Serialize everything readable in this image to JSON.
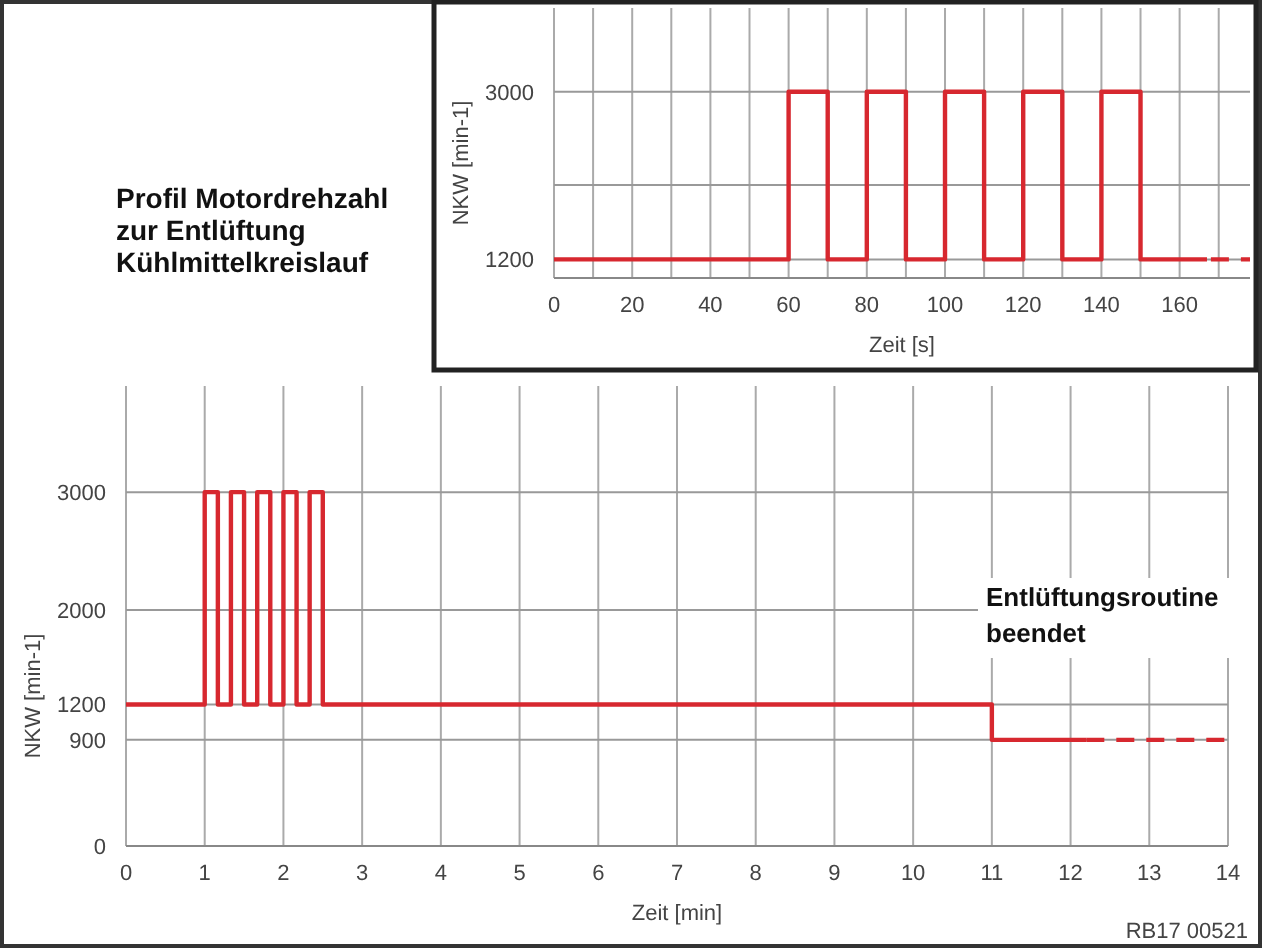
{
  "chart_data": [
    {
      "type": "line",
      "title": "Profil Motordrehzahl zur Entlüftung Kühlmittelkreislauf",
      "xlabel": "Zeit [min]",
      "ylabel": "NKW [min-1]",
      "xlim": [
        0,
        14
      ],
      "xticks": [
        0,
        1,
        2,
        3,
        4,
        5,
        6,
        7,
        8,
        9,
        10,
        11,
        12,
        13,
        14
      ],
      "ylim": [
        0,
        3900
      ],
      "yticks": [
        0,
        900,
        1200,
        2000,
        3000
      ],
      "grid": true,
      "series": [
        {
          "color": "#d7282f",
          "line_style": "solid",
          "x": [
            0,
            1,
            1,
            1.167,
            1.167,
            1.333,
            1.333,
            1.5,
            1.5,
            1.667,
            1.667,
            1.833,
            1.833,
            2,
            2,
            2.167,
            2.167,
            2.333,
            2.333,
            2.5,
            2.5,
            11,
            11,
            12.2
          ],
          "values": [
            1200,
            1200,
            3000,
            3000,
            1200,
            1200,
            3000,
            3000,
            1200,
            1200,
            3000,
            3000,
            1200,
            1200,
            3000,
            3000,
            1200,
            1200,
            3000,
            3000,
            1200,
            1200,
            900,
            900
          ]
        },
        {
          "color": "#d7282f",
          "line_style": "dashed",
          "x": [
            12.2,
            14
          ],
          "values": [
            900,
            900
          ]
        }
      ],
      "annotations": [
        "Entlüftungsroutine beendet",
        "RB17 00521"
      ]
    },
    {
      "type": "line",
      "xlabel": "Zeit [s]",
      "ylabel": "NKW [min-1]",
      "xlim": [
        0,
        178
      ],
      "xticks": [
        0,
        {
          "value": 10,
          "label": null
        },
        20,
        {
          "value": 30,
          "label": null
        },
        40,
        {
          "value": 50,
          "label": null
        },
        60,
        {
          "value": 70,
          "label": null
        },
        80,
        {
          "value": 90,
          "label": null
        },
        100,
        {
          "value": 110,
          "label": null
        },
        120,
        {
          "value": 130,
          "label": null
        },
        140,
        {
          "value": 150,
          "label": null
        },
        160,
        {
          "value": 170,
          "label": null
        }
      ],
      "ylim": [
        1000,
        3900
      ],
      "yticks": [
        1200,
        {
          "value": 2000,
          "label": null
        },
        3000
      ],
      "grid": true,
      "series": [
        {
          "color": "#d7282f",
          "line_style": "solid",
          "x": [
            0,
            60,
            60,
            70,
            70,
            80,
            80,
            90,
            90,
            100,
            100,
            110,
            110,
            120,
            120,
            130,
            130,
            140,
            140,
            150,
            150,
            167
          ],
          "values": [
            1200,
            1200,
            3000,
            3000,
            1200,
            1200,
            3000,
            3000,
            1200,
            1200,
            3000,
            3000,
            1200,
            1200,
            3000,
            3000,
            1200,
            1200,
            3000,
            3000,
            1200,
            1200
          ]
        },
        {
          "color": "#d7282f",
          "line_style": "dashed",
          "x": [
            168,
            178
          ],
          "values": [
            1200,
            1200
          ]
        }
      ]
    }
  ]
}
